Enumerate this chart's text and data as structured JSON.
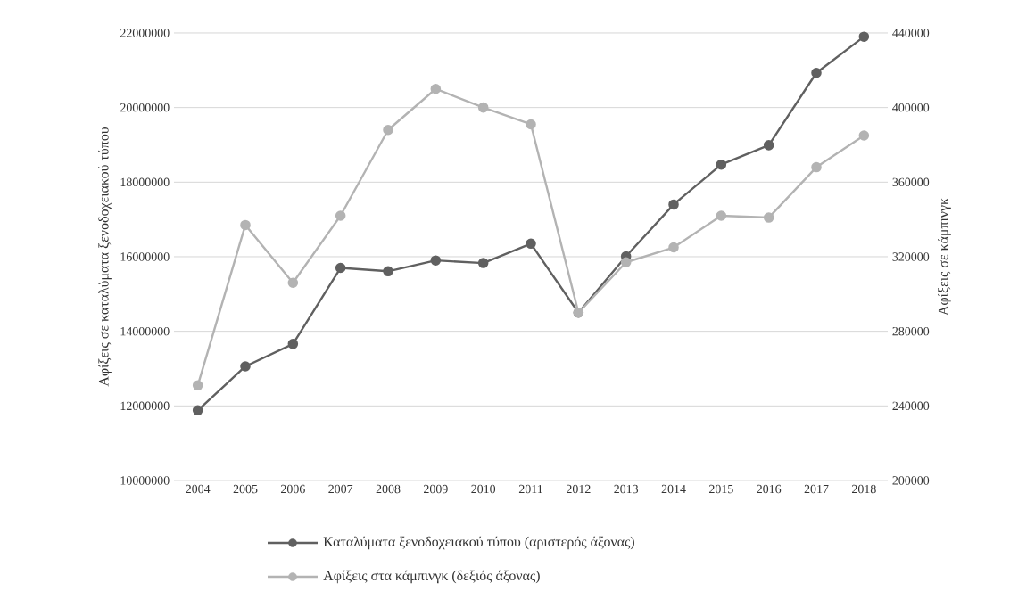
{
  "chart_data": {
    "type": "line",
    "categories": [
      "2004",
      "2005",
      "2006",
      "2007",
      "2008",
      "2009",
      "2010",
      "2011",
      "2012",
      "2013",
      "2014",
      "2015",
      "2016",
      "2017",
      "2018"
    ],
    "series": [
      {
        "name": "Καταλύματα ξενοδοχειακού τύπου (αριστερός άξονας)",
        "color": "#606060",
        "axis": "y",
        "values": [
          11880000,
          13060000,
          13660000,
          15700000,
          15610000,
          15900000,
          15830000,
          16350000,
          14500000,
          16010000,
          17400000,
          18470000,
          18990000,
          20930000,
          21900000
        ]
      },
      {
        "name": "Αφίξεις στα κάμπινγκ (δεξιός άξονας)",
        "color": "#b3b3b3",
        "axis": "y2",
        "values": [
          251000,
          337000,
          306000,
          342000,
          388000,
          410000,
          400000,
          391000,
          290000,
          317000,
          325000,
          342000,
          341000,
          368000,
          385000
        ]
      }
    ],
    "ylabel": "Αφίξεις σε καταλύματα ξενοδοχειακού τύπου",
    "y2label": "Αφίξεις σε κάμπινγκ",
    "ylim": [
      10000000,
      22000000
    ],
    "yticks": [
      10000000,
      12000000,
      14000000,
      16000000,
      18000000,
      20000000,
      22000000
    ],
    "y2lim": [
      200000,
      440000
    ],
    "y2ticks": [
      200000,
      240000,
      280000,
      320000,
      360000,
      400000,
      440000
    ],
    "grid": "y",
    "legend": "bottom",
    "marker": "circle",
    "line_style": "solid"
  }
}
